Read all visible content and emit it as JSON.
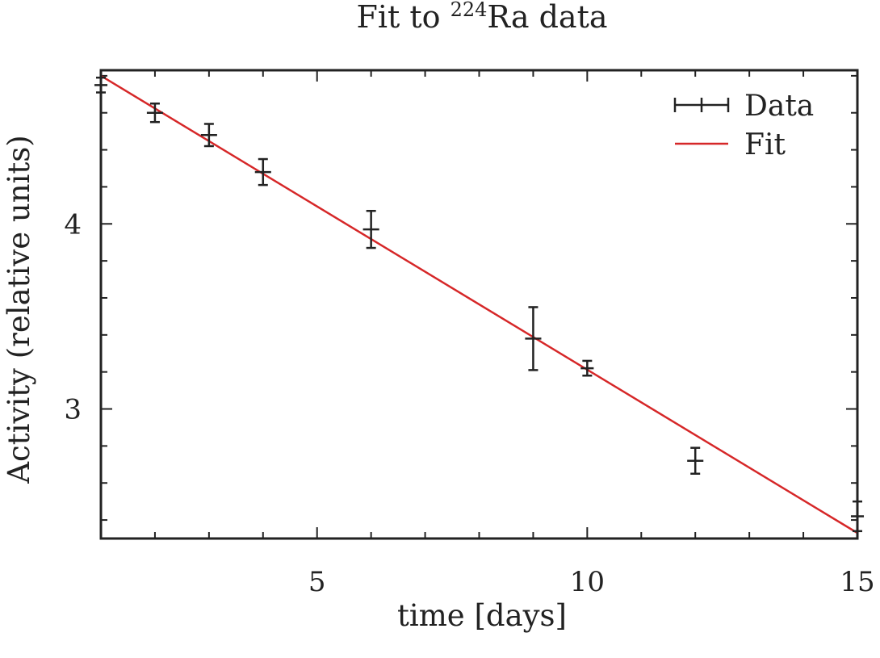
{
  "chart_data": {
    "type": "scatter",
    "title": {
      "prefix": "Fit to ",
      "superscript": "224",
      "suffix": "Ra data"
    },
    "xlabel": "time [days]",
    "ylabel": "Activity (relative units)",
    "xlim": [
      1,
      15
    ],
    "ylim": [
      2.3,
      4.83
    ],
    "x_ticks_major": [
      5,
      10,
      15
    ],
    "x_ticks_minor": [
      2,
      3,
      4,
      6,
      7,
      8,
      9,
      11,
      12,
      13,
      14
    ],
    "y_ticks_major": [
      3,
      4
    ],
    "y_ticks_minor": [
      2.4,
      2.6,
      2.8,
      3.2,
      3.4,
      3.6,
      3.8,
      4.2,
      4.4,
      4.6,
      4.8
    ],
    "x_tick_labels": [
      "5",
      "10",
      "15"
    ],
    "y_tick_labels": [
      "3",
      "4"
    ],
    "legend_position": "top-right",
    "grid": false,
    "series": [
      {
        "name": "Data",
        "kind": "errorbar",
        "color": "#222222",
        "points": [
          {
            "x": 1,
            "y": 4.75,
            "xerr": 0.12,
            "yerr": 0.04
          },
          {
            "x": 2,
            "y": 4.6,
            "xerr": 0.15,
            "yerr": 0.05
          },
          {
            "x": 3,
            "y": 4.48,
            "xerr": 0.15,
            "yerr": 0.06
          },
          {
            "x": 4,
            "y": 4.28,
            "xerr": 0.15,
            "yerr": 0.07
          },
          {
            "x": 6,
            "y": 3.97,
            "xerr": 0.15,
            "yerr": 0.1
          },
          {
            "x": 9,
            "y": 3.38,
            "xerr": 0.15,
            "yerr": 0.17
          },
          {
            "x": 10,
            "y": 3.22,
            "xerr": 0.12,
            "yerr": 0.04
          },
          {
            "x": 12,
            "y": 2.72,
            "xerr": 0.15,
            "yerr": 0.07
          },
          {
            "x": 15,
            "y": 2.42,
            "xerr": 0.12,
            "yerr": 0.08
          }
        ]
      },
      {
        "name": "Fit",
        "kind": "line",
        "color": "#d62728",
        "x": [
          1,
          15
        ],
        "y": [
          4.8,
          2.33
        ]
      }
    ]
  }
}
